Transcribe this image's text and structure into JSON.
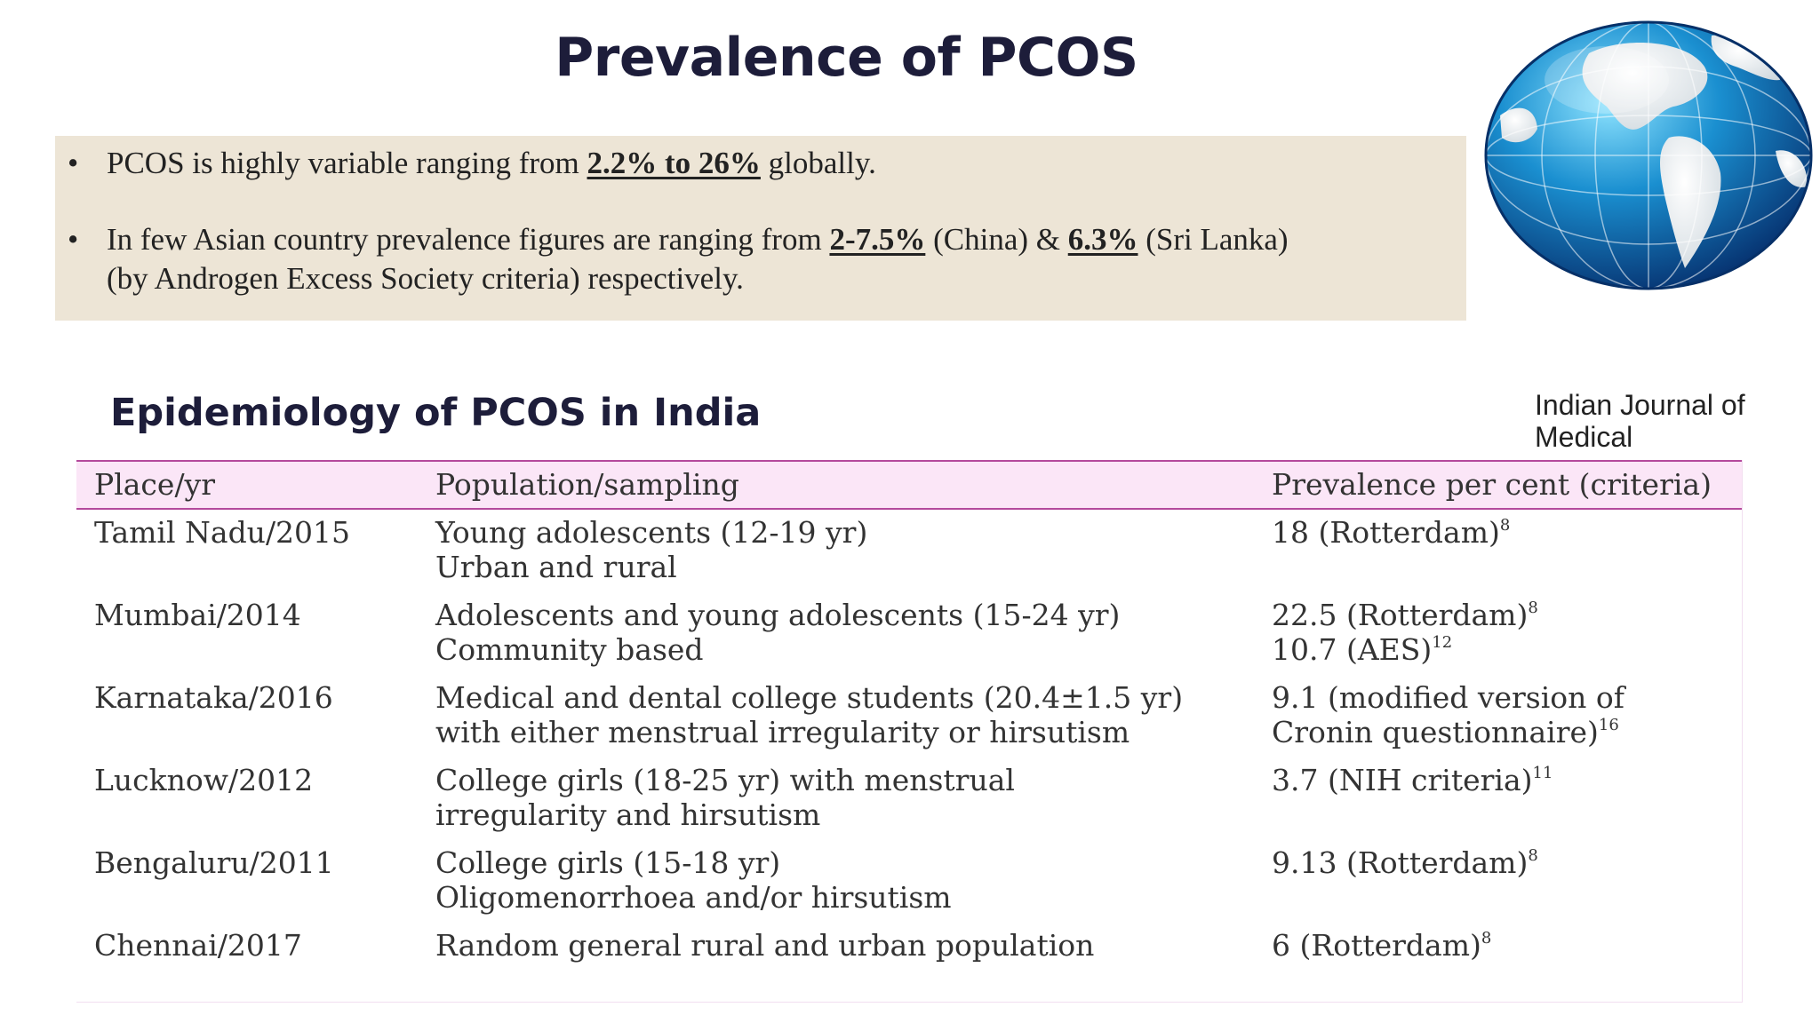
{
  "title": "Prevalence of PCOS",
  "bullets": [
    {
      "before": "PCOS is highly variable ranging from ",
      "highlight": "2.2% to 26%",
      "after": " globally."
    },
    {
      "before": "In few Asian country prevalence figures are ranging from ",
      "highlight1": "2-7.5%",
      "mid": " (China) & ",
      "highlight2": "6.3%",
      "after_line1": " (Sri Lanka)",
      "line2": "(by Androgen Excess Society criteria) respectively."
    }
  ],
  "bullet_char": "•",
  "subtitle": "Epidemiology of PCOS in India",
  "source": "Indian Journal of Medical",
  "table": {
    "headers": [
      "Place/yr",
      "Population/sampling",
      "Prevalence per cent (criteria)"
    ],
    "rows": [
      {
        "place": "Tamil Nadu/2015",
        "pop1": "Young adolescents (12-19 yr)",
        "pop2": "Urban and rural",
        "prev1": "18 (Rotterdam)",
        "prev1_sup": "8",
        "prev2": "",
        "prev2_sup": ""
      },
      {
        "place": "Mumbai/2014",
        "pop1": "Adolescents and young adolescents (15-24 yr)",
        "pop2": "Community based",
        "prev1": "22.5 (Rotterdam)",
        "prev1_sup": "8",
        "prev2": "10.7 (AES)",
        "prev2_sup": "12"
      },
      {
        "place": "Karnataka/2016",
        "pop1": "Medical and dental college students (20.4±1.5 yr)",
        "pop2": "with either menstrual irregularity or hirsutism",
        "prev1": "9.1 (modified version of",
        "prev1_sup": "",
        "prev2": "Cronin questionnaire)",
        "prev2_sup": "16"
      },
      {
        "place": "Lucknow/2012",
        "pop1": "College girls (18-25 yr) with menstrual",
        "pop2": "irregularity and hirsutism",
        "prev1": "3.7 (NIH criteria)",
        "prev1_sup": "11",
        "prev2": "",
        "prev2_sup": ""
      },
      {
        "place": "Bengaluru/2011",
        "pop1": "College girls (15-18 yr)",
        "pop2": "Oligomenorrhoea and/or hirsutism",
        "prev1": "9.13 (Rotterdam)",
        "prev1_sup": "8",
        "prev2": "",
        "prev2_sup": ""
      },
      {
        "place": "Chennai/2017",
        "pop1": "Random general rural and urban population",
        "pop2": "",
        "prev1": "6 (Rotterdam)",
        "prev1_sup": "8",
        "prev2": "",
        "prev2_sup": ""
      }
    ]
  },
  "colors": {
    "title": "#1d1d3a",
    "box_bg": "#ede5d6",
    "header_bg": "#fbe6f7",
    "header_rule": "#b44a9c"
  },
  "icons": [
    "globe-icon"
  ]
}
